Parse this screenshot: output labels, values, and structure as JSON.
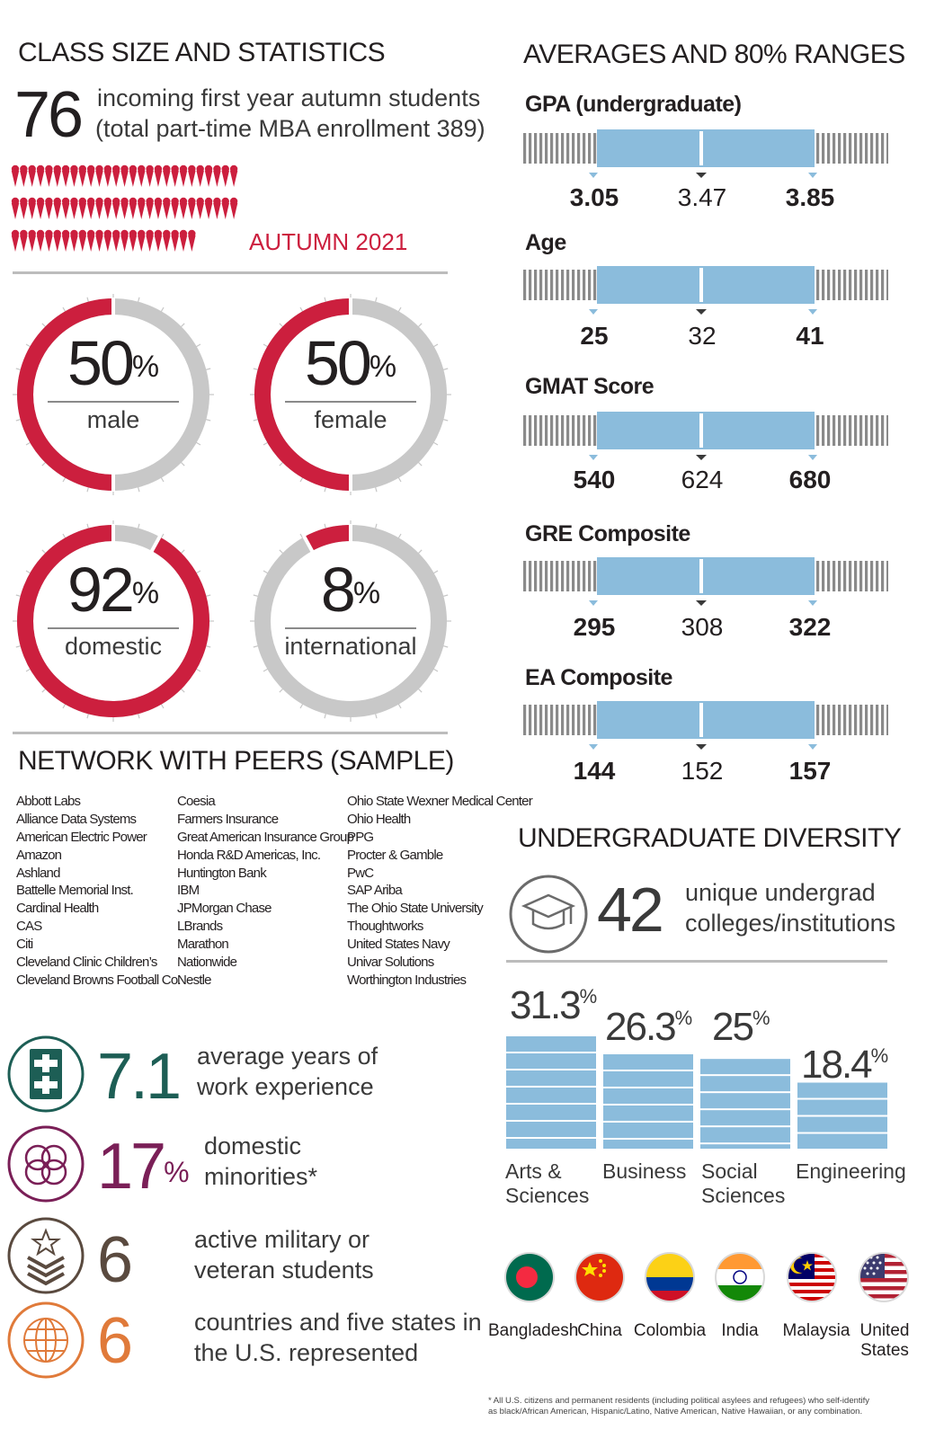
{
  "class_size": {
    "title": "CLASS SIZE AND STATISTICS",
    "count": "76",
    "desc_line1": "incoming first year autumn students",
    "desc_line2": "(total part-time MBA enrollment 389)",
    "term": "AUTUMN 2021",
    "accent": "#cc1f3e"
  },
  "donuts": [
    {
      "pct": "50",
      "label": "male",
      "fraction": 0.5
    },
    {
      "pct": "50",
      "label": "female",
      "fraction": 0.5
    },
    {
      "pct": "92",
      "label": "domestic",
      "fraction": 0.92
    },
    {
      "pct": "8",
      "label": "international",
      "fraction": 0.08
    }
  ],
  "donut_pct_sign": "%",
  "network": {
    "title": "NETWORK WITH PEERS (SAMPLE)",
    "columns": [
      [
        "Abbott Labs",
        "Alliance Data Systems",
        "American Electric Power",
        "Amazon",
        "Ashland",
        "Battelle Memorial Inst.",
        "Cardinal Health",
        "CAS",
        "Citi",
        "Cleveland Clinic Children’s",
        "Cleveland Browns Football Co."
      ],
      [
        "Coesia",
        "Farmers Insurance",
        "Great American Insurance Group",
        "Honda R&D Americas, Inc.",
        "Huntington Bank",
        "IBM",
        "JPMorgan Chase",
        "LBrands",
        "Marathon",
        "Nationwide",
        "Nestle"
      ],
      [
        "Ohio State Wexner Medical Center",
        "Ohio Health",
        "PPG",
        "Procter & Gamble",
        "PwC",
        "SAP Ariba",
        "The Ohio State University",
        "Thoughtworks",
        "United States Navy",
        "Univar Solutions",
        "Worthington Industries"
      ]
    ]
  },
  "stats": [
    {
      "icon": "medical-cross-icon",
      "value": "7.1",
      "sup": "",
      "line1": "average years of",
      "line2": "work experience",
      "color": "#1d5e55"
    },
    {
      "icon": "interlocking-circles-icon",
      "value": "17",
      "sup": "%",
      "line1": "domestic",
      "line2": "minorities*",
      "color": "#7a1f57"
    },
    {
      "icon": "military-chevron-icon",
      "value": "6",
      "sup": "",
      "line1": "active military or",
      "line2": "veteran students",
      "color": "#5a4a3f"
    },
    {
      "icon": "globe-icon",
      "value": "6",
      "sup": "",
      "line1": "countries and five states in",
      "line2": "the U.S. represented",
      "color": "#e07a3a"
    }
  ],
  "ranges": {
    "title": "AVERAGES AND 80% RANGES",
    "bar_color": "#8bbcdc",
    "items": [
      {
        "name": "GPA (undergraduate)",
        "low": "3.05",
        "avg": "3.47",
        "high": "3.85"
      },
      {
        "name": "Age",
        "low": "25",
        "avg": "32",
        "high": "41"
      },
      {
        "name": "GMAT Score",
        "low": "540",
        "avg": "624",
        "high": "680"
      },
      {
        "name": "GRE Composite",
        "low": "295",
        "avg": "308",
        "high": "322"
      },
      {
        "name": "EA Composite",
        "low": "144",
        "avg": "152",
        "high": "157"
      }
    ]
  },
  "diversity": {
    "title": "UNDERGRADUATE DIVERSITY",
    "count": "42",
    "count_line1": "unique undergrad",
    "count_line2": "colleges/institutions",
    "bar_color": "#8bbcdc",
    "bars": [
      {
        "pct": "31.3",
        "value": 31.3,
        "line1": "Arts &",
        "line2": "Sciences"
      },
      {
        "pct": "26.3",
        "value": 26.3,
        "line1": "Business",
        "line2": ""
      },
      {
        "pct": "25",
        "value": 25,
        "line1": "Social",
        "line2": "Sciences"
      },
      {
        "pct": "18.4",
        "value": 18.4,
        "line1": "Engineering",
        "line2": ""
      }
    ],
    "pct_sign": "%",
    "countries": [
      {
        "name": "Bangladesh",
        "name2": "",
        "icon": "bangladesh-flag-icon"
      },
      {
        "name": "China",
        "name2": "",
        "icon": "china-flag-icon"
      },
      {
        "name": "Colombia",
        "name2": "",
        "icon": "colombia-flag-icon"
      },
      {
        "name": "India",
        "name2": "",
        "icon": "india-flag-icon"
      },
      {
        "name": "Malaysia",
        "name2": "",
        "icon": "malaysia-flag-icon"
      },
      {
        "name": "United",
        "name2": "States",
        "icon": "usa-flag-icon"
      }
    ],
    "footnote_line1": "* All U.S. citizens and permanent residents (including political asylees and refugees) who self-identify",
    "footnote_line2": "as black/African American, Hispanic/Latino, Native American, Native Hawaiian, or any combination."
  }
}
